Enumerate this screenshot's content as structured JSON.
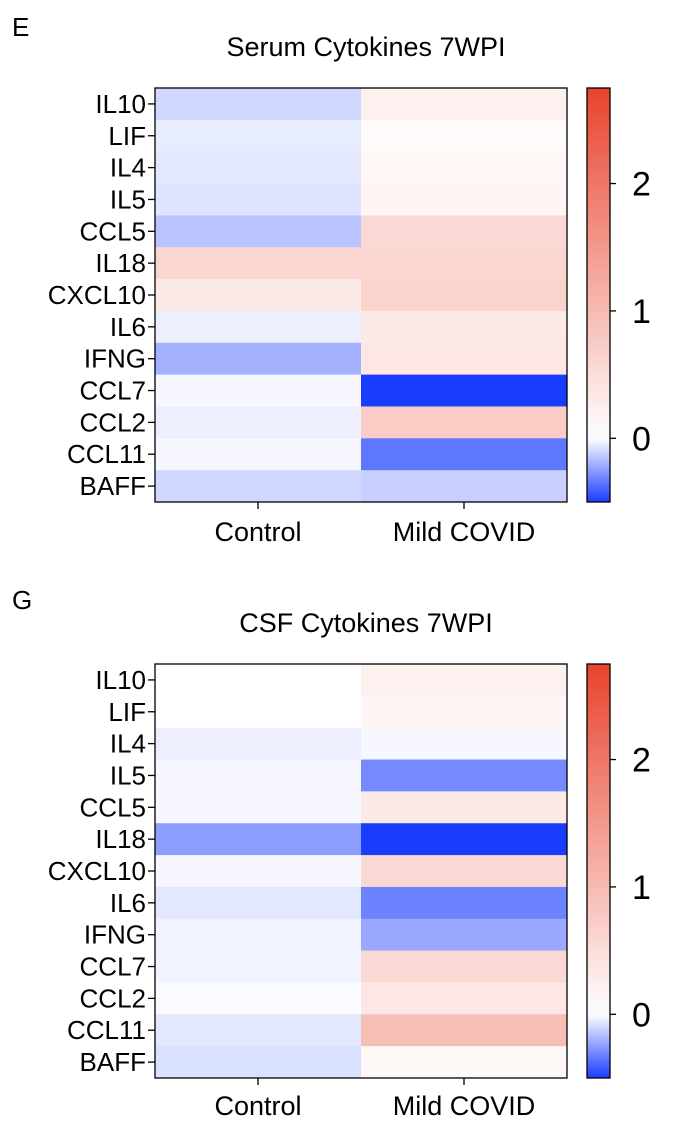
{
  "colors": {
    "low": "#1a3cff",
    "mid": "#ffffff",
    "high": "#e8432d",
    "frame": "#000000"
  },
  "chart_data": [
    {
      "type": "heatmap",
      "panel": "E",
      "title": "Serum Cytokines 7WPI",
      "rows": [
        "IL10",
        "LIF",
        "IL4",
        "IL5",
        "CCL5",
        "IL18",
        "CXCL10",
        "IL6",
        "IFNG",
        "CCL7",
        "CCL2",
        "CCL11",
        "BAFF"
      ],
      "columns": [
        "Control",
        "Mild COVID"
      ],
      "values": [
        [
          -0.1,
          0.2
        ],
        [
          -0.05,
          0.08
        ],
        [
          -0.06,
          0.12
        ],
        [
          -0.07,
          0.15
        ],
        [
          -0.15,
          0.55
        ],
        [
          0.6,
          0.6
        ],
        [
          0.3,
          0.65
        ],
        [
          -0.04,
          0.3
        ],
        [
          -0.2,
          0.35
        ],
        [
          -0.02,
          -0.7
        ],
        [
          -0.04,
          0.75
        ],
        [
          -0.02,
          -0.35
        ],
        [
          -0.1,
          -0.12
        ]
      ],
      "colorbar": {
        "min": -0.5,
        "max": 2.75,
        "ticks": [
          0,
          1,
          2
        ]
      }
    },
    {
      "type": "heatmap",
      "panel": "G",
      "title": "CSF Cytokines 7WPI",
      "rows": [
        "IL10",
        "LIF",
        "IL4",
        "IL5",
        "CCL5",
        "IL18",
        "CXCL10",
        "IL6",
        "IFNG",
        "CCL7",
        "CCL2",
        "CCL11",
        "BAFF"
      ],
      "columns": [
        "Control",
        "Mild COVID"
      ],
      "values": [
        [
          0.0,
          0.2
        ],
        [
          0.0,
          0.15
        ],
        [
          -0.04,
          -0.02
        ],
        [
          -0.02,
          -0.3
        ],
        [
          -0.02,
          0.3
        ],
        [
          -0.25,
          -0.85
        ],
        [
          -0.02,
          0.55
        ],
        [
          -0.06,
          -0.32
        ],
        [
          -0.03,
          -0.22
        ],
        [
          -0.03,
          0.55
        ],
        [
          -0.01,
          0.35
        ],
        [
          -0.06,
          0.95
        ],
        [
          -0.08,
          0.1
        ]
      ],
      "colorbar": {
        "min": -0.5,
        "max": 2.75,
        "ticks": [
          0,
          1,
          2
        ]
      }
    }
  ]
}
